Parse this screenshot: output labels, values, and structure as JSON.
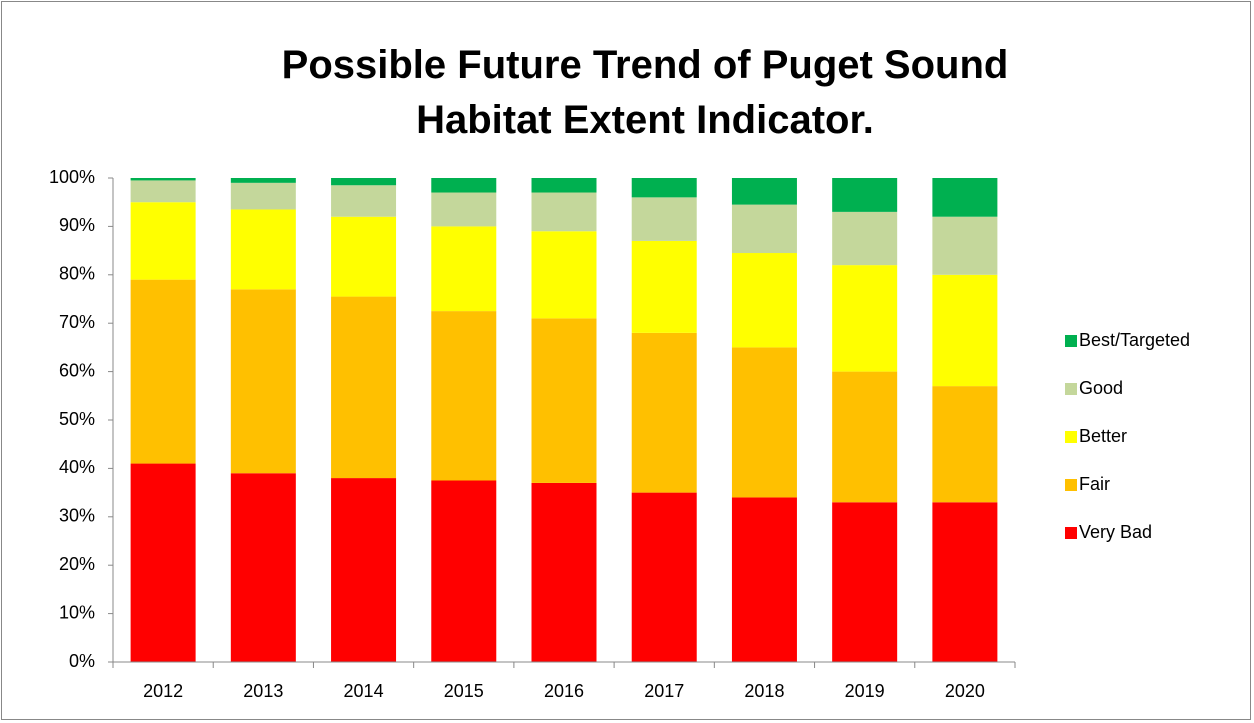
{
  "chart_data": {
    "type": "stacked_bar",
    "title": "Possible Future Trend of Puget Sound Habitat Extent Indicator.",
    "categories": [
      "2012",
      "2013",
      "2014",
      "2015",
      "2016",
      "2017",
      "2018",
      "2019",
      "2020"
    ],
    "series": [
      {
        "name": "Very Bad",
        "color": "#ff0000",
        "values": [
          41,
          39,
          38,
          37.5,
          37,
          35,
          34,
          33,
          33
        ]
      },
      {
        "name": "Fair",
        "color": "#ffc000",
        "values": [
          38,
          38,
          37.5,
          35,
          34,
          33,
          31,
          27,
          24
        ]
      },
      {
        "name": "Better",
        "color": "#ffff00",
        "values": [
          16,
          16.5,
          16.5,
          17.5,
          18,
          19,
          19.5,
          22,
          23
        ]
      },
      {
        "name": "Good",
        "color": "#c4d79b",
        "values": [
          4.5,
          5.5,
          6.5,
          7,
          8,
          9,
          10,
          11,
          12
        ]
      },
      {
        "name": "Best/Targeted",
        "color": "#00b050",
        "values": [
          0.5,
          1,
          1.5,
          3,
          3,
          4,
          5.5,
          7,
          8
        ]
      }
    ],
    "ylim": [
      0,
      100
    ],
    "yticks": [
      {
        "value": 0,
        "label": "0%"
      },
      {
        "value": 10,
        "label": "10%"
      },
      {
        "value": 20,
        "label": "20%"
      },
      {
        "value": 30,
        "label": "30%"
      },
      {
        "value": 40,
        "label": "40%"
      },
      {
        "value": 50,
        "label": "50%"
      },
      {
        "value": 60,
        "label": "60%"
      },
      {
        "value": 70,
        "label": "70%"
      },
      {
        "value": 80,
        "label": "80%"
      },
      {
        "value": 90,
        "label": "90%"
      },
      {
        "value": 100,
        "label": "100%"
      }
    ],
    "legend": "right"
  }
}
